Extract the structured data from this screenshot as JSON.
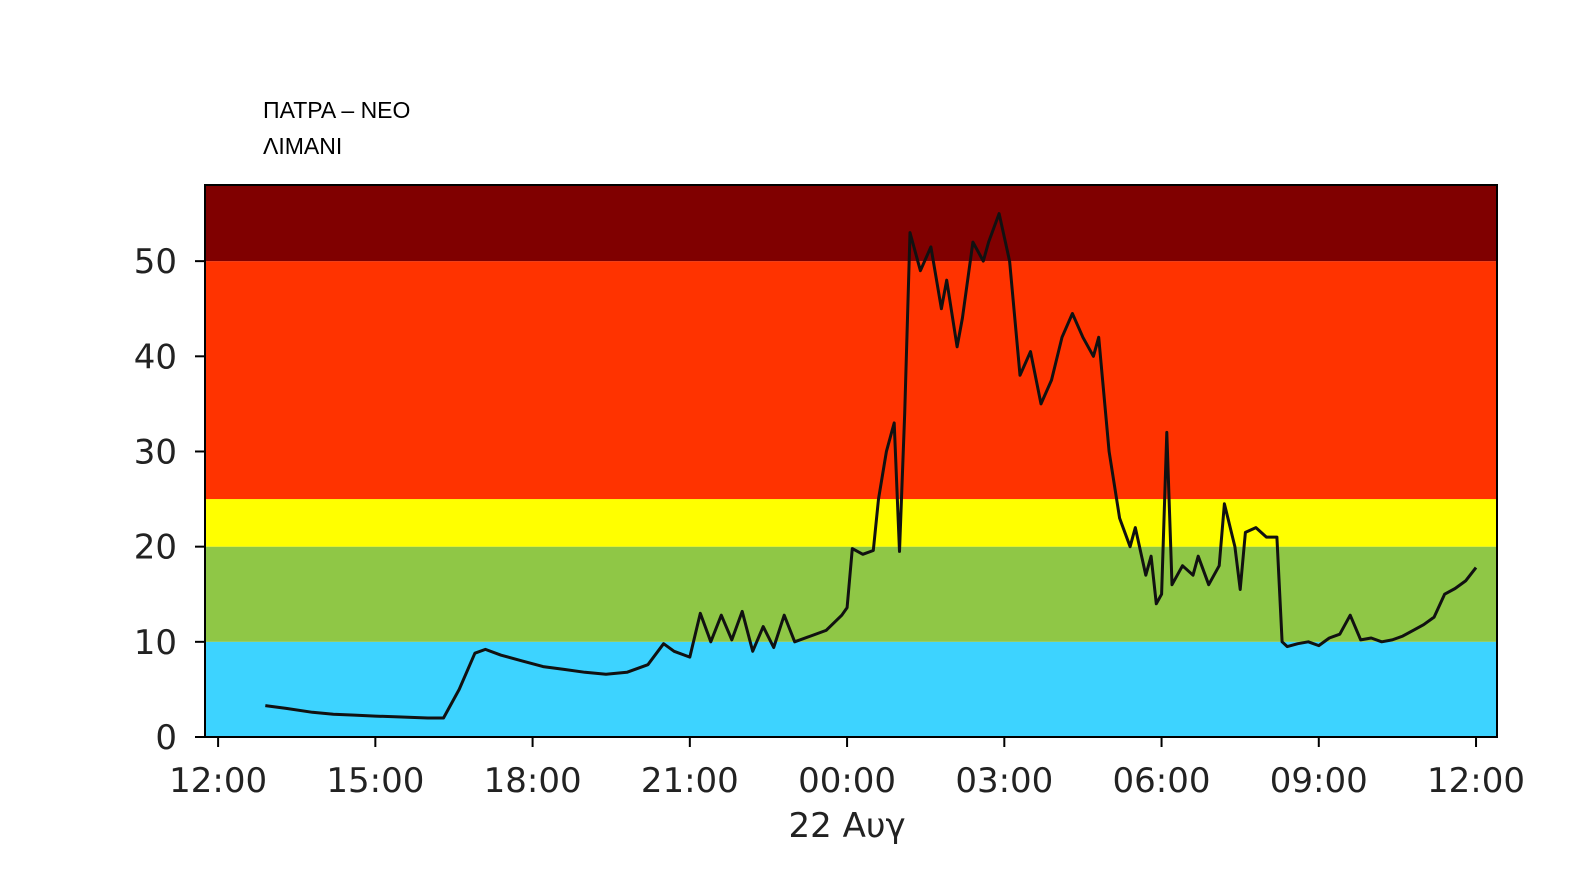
{
  "chart_data": {
    "type": "line",
    "title_lines": [
      "ΠΑΤΡΑ – ΝΕΟ",
      "ΛΙΜΑΝΙ"
    ],
    "date_label": "22 Αυγ",
    "xlabel": "",
    "ylabel": "",
    "ylim": [
      0,
      58
    ],
    "yticks": [
      0,
      10,
      20,
      30,
      40,
      50
    ],
    "xlim_hours": [
      11.75,
      36.4
    ],
    "xticks": [
      {
        "h": 12,
        "label": "12:00"
      },
      {
        "h": 15,
        "label": "15:00"
      },
      {
        "h": 18,
        "label": "18:00"
      },
      {
        "h": 21,
        "label": "21:00"
      },
      {
        "h": 24,
        "label": "00:00"
      },
      {
        "h": 27,
        "label": "03:00"
      },
      {
        "h": 30,
        "label": "06:00"
      },
      {
        "h": 33,
        "label": "09:00"
      },
      {
        "h": 36,
        "label": "12:00"
      }
    ],
    "bands": [
      {
        "from": 0,
        "to": 10,
        "color": "#3dd3ff"
      },
      {
        "from": 10,
        "to": 20,
        "color": "#8fc746"
      },
      {
        "from": 20,
        "to": 25,
        "color": "#ffff00"
      },
      {
        "from": 25,
        "to": 50,
        "color": "#ff3300"
      },
      {
        "from": 50,
        "to": 58,
        "color": "#800000"
      }
    ],
    "line_color": "#111111",
    "series": [
      {
        "x": [
          12.9,
          13.3,
          13.8,
          14.2,
          14.6,
          15.0,
          15.5,
          16.0,
          16.3,
          16.6,
          16.9,
          17.1,
          17.4,
          17.8,
          18.2,
          18.6,
          19.0,
          19.4,
          19.8,
          20.2,
          20.5,
          20.7,
          21.0,
          21.2,
          21.4,
          21.6,
          21.8,
          22.0,
          22.2,
          22.4,
          22.6,
          22.8,
          23.0,
          23.3,
          23.6,
          23.9,
          24.0,
          24.1,
          24.3,
          24.5,
          24.6,
          24.75,
          24.9,
          25.0,
          25.1,
          25.2,
          25.4,
          25.6,
          25.8,
          25.9,
          26.1,
          26.2,
          26.4,
          26.6,
          26.7,
          26.9,
          27.1,
          27.3,
          27.5,
          27.7,
          27.9,
          28.1,
          28.3,
          28.5,
          28.7,
          28.8,
          29.0,
          29.2,
          29.4,
          29.5,
          29.7,
          29.8,
          29.9,
          30.0,
          30.1,
          30.2,
          30.4,
          30.6,
          30.7,
          30.9,
          31.1,
          31.2,
          31.4,
          31.5,
          31.6,
          31.8,
          32.0,
          32.2,
          32.3,
          32.4,
          32.6,
          32.8,
          33.0,
          33.2,
          33.4,
          33.6,
          33.8,
          34.0,
          34.2,
          34.4,
          34.6,
          34.8,
          35.0,
          35.2,
          35.4,
          35.6,
          35.8,
          36.0
        ],
        "values": [
          3.3,
          3.0,
          2.6,
          2.4,
          2.3,
          2.2,
          2.1,
          2.0,
          2.0,
          5.0,
          8.8,
          9.2,
          8.6,
          8.0,
          7.4,
          7.1,
          6.8,
          6.6,
          6.8,
          7.6,
          9.8,
          9.0,
          8.4,
          13.0,
          10.0,
          12.8,
          10.2,
          13.2,
          9.0,
          11.6,
          9.4,
          12.8,
          10.0,
          10.6,
          11.2,
          12.8,
          13.6,
          19.8,
          19.2,
          19.6,
          25.0,
          30.0,
          33.0,
          19.5,
          34.0,
          53.0,
          49.0,
          51.5,
          45.0,
          48.0,
          41.0,
          44.0,
          52.0,
          50.0,
          52.0,
          55.0,
          50.0,
          38.0,
          40.5,
          35.0,
          37.5,
          42.0,
          44.5,
          42.0,
          40.0,
          42.0,
          30.0,
          23.0,
          20.0,
          22.0,
          17.0,
          19.0,
          14.0,
          15.0,
          32.0,
          16.0,
          18.0,
          17.0,
          19.0,
          16.0,
          18.0,
          24.5,
          20.0,
          15.5,
          21.5,
          22.0,
          21.0,
          21.0,
          10.0,
          9.5,
          9.8,
          10.0,
          9.6,
          10.4,
          10.8,
          12.8,
          10.2,
          10.4,
          10.0,
          10.2,
          10.6,
          11.2,
          11.8,
          12.6,
          15.0,
          15.6,
          16.4,
          17.8
        ]
      }
    ]
  }
}
